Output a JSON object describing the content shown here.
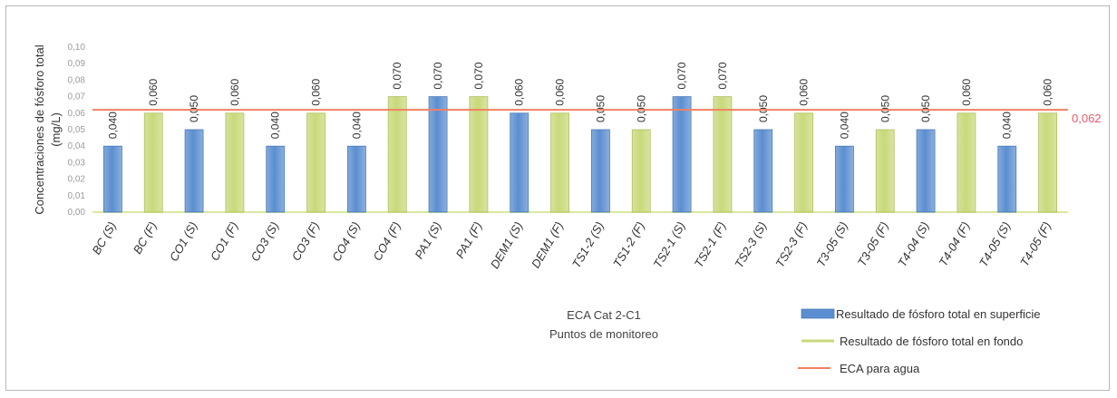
{
  "chart_data": {
    "type": "bar",
    "categories": [
      "BC (S)",
      "BC (F)",
      "CO1 (S)",
      "CO1 (F)",
      "CO3 (S)",
      "CO3 (F)",
      "CO4 (S)",
      "CO4 (F)",
      "PA1 (S)",
      "PA1 (F)",
      "DEM1 (S)",
      "DEM1 (F)",
      "TS1-2 (S)",
      "TS1-2 (F)",
      "TS2-1 (S)",
      "TS2-1 (F)",
      "TS2-3 (S)",
      "TS2-3 (F)",
      "T3-05 (S)",
      "T3-05 (F)",
      "T4-04 (S)",
      "T4-04 (F)",
      "T4-05 (S)",
      "T4-05 (F)"
    ],
    "values": [
      0.04,
      0.06,
      0.05,
      0.06,
      0.04,
      0.06,
      0.04,
      0.07,
      0.07,
      0.07,
      0.06,
      0.06,
      0.05,
      0.05,
      0.07,
      0.07,
      0.05,
      0.06,
      0.04,
      0.05,
      0.05,
      0.06,
      0.04,
      0.06
    ],
    "value_labels": [
      "0,040",
      "0,060",
      "0,050",
      "0,060",
      "0,040",
      "0,060",
      "0,040",
      "0,070",
      "0,070",
      "0,070",
      "0,060",
      "0,060",
      "0,050",
      "0,050",
      "0,070",
      "0,070",
      "0,050",
      "0,060",
      "0,040",
      "0,050",
      "0,050",
      "0,060",
      "0,040",
      "0,060"
    ],
    "bar_series": [
      "S",
      "F",
      "S",
      "F",
      "S",
      "F",
      "S",
      "F",
      "S",
      "F",
      "S",
      "F",
      "S",
      "F",
      "S",
      "F",
      "S",
      "F",
      "S",
      "F",
      "S",
      "F",
      "S",
      "F"
    ],
    "series": [
      {
        "name": "Resultado de fósforo total en superficie",
        "key": "S",
        "color": "#5b8ed0"
      },
      {
        "name": "Resultado de fósforo total en fondo",
        "key": "F",
        "color": "#c8d97a"
      },
      {
        "name": "ECA para agua",
        "key": "ECA",
        "color": "#f08060",
        "value": 0.062
      }
    ],
    "reference_label": "0,062",
    "ylabel": "Concentraciones de fósforo total (mg/L)",
    "ylabel_lines": [
      "Concentraciones de fósforo total",
      "(mg/L)"
    ],
    "xlabel_lines": [
      "ECA Cat 2-C1",
      "Puntos de monitoreo"
    ],
    "ylim": [
      0,
      0.1
    ],
    "yticks": [
      "0,00",
      "0,01",
      "0,02",
      "0,03",
      "0,04",
      "0,05",
      "0,06",
      "0,07",
      "0,08",
      "0,09",
      "0,10"
    ],
    "grid": false,
    "legend_position": "bottom-right"
  }
}
